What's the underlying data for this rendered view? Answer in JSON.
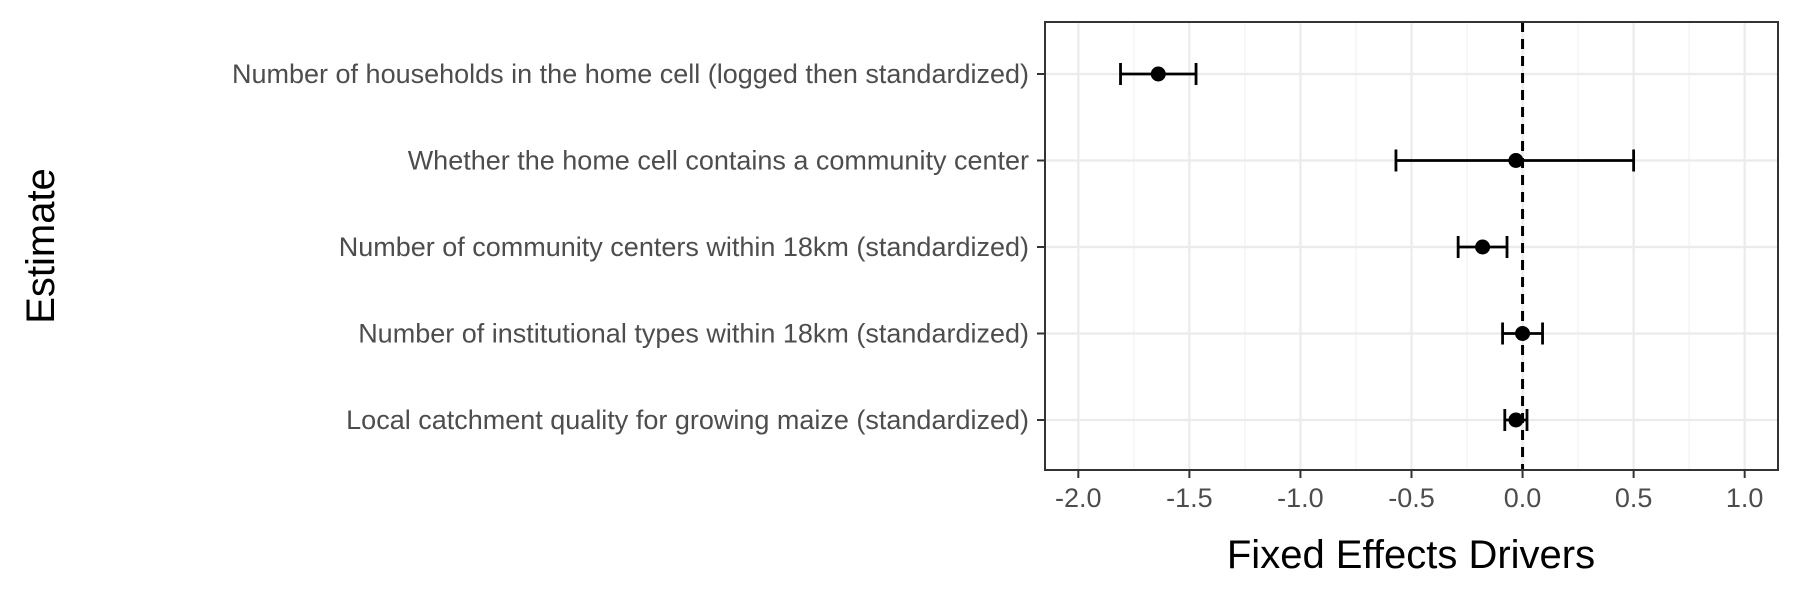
{
  "chart_data": {
    "type": "scatter",
    "subtype": "coefficient-plot-with-error-bars",
    "title": "",
    "xlabel": "Fixed Effects Drivers",
    "ylabel": "Estimate",
    "xlim": [
      -2.15,
      1.15
    ],
    "x_ticks": [
      -2.0,
      -1.5,
      -1.0,
      -0.5,
      0.0,
      0.5,
      1.0
    ],
    "x_tick_labels": [
      "-2.0",
      "-1.5",
      "-1.0",
      "-0.5",
      "0.0",
      "0.5",
      "1.0"
    ],
    "categories": [
      "Number of households in the home cell (logged then standardized)",
      "Whether the home cell contains a community center",
      "Number of community centers within 18km (standardized)",
      "Number of institutional types within 18km (standardized)",
      "Local catchment quality for growing maize (standardized)"
    ],
    "estimates": [
      -1.64,
      -0.03,
      -0.18,
      0.0,
      -0.03
    ],
    "lower": [
      -1.81,
      -0.57,
      -0.29,
      -0.09,
      -0.08
    ],
    "upper": [
      -1.47,
      0.5,
      -0.07,
      0.09,
      0.02
    ],
    "reference_line": 0,
    "grid": true,
    "legend": "none",
    "colors": {
      "point": "#000000",
      "grid": "#ebebeb",
      "panel_border": "#333333",
      "tick_text": "#4d4d4d"
    }
  }
}
